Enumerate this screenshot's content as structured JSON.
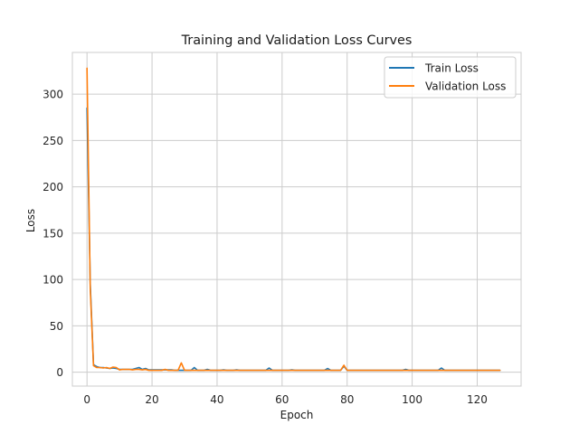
{
  "chart_data": {
    "type": "line",
    "title": "Training and Validation Loss Curves",
    "xlabel": "Epoch",
    "ylabel": "Loss",
    "xlim": [
      -4.5,
      133.5
    ],
    "ylim": [
      -15,
      345
    ],
    "xticks": [
      0,
      20,
      40,
      60,
      80,
      100,
      120
    ],
    "yticks": [
      0,
      50,
      100,
      150,
      200,
      250,
      300
    ],
    "grid": true,
    "legend_position": "top-right",
    "series": [
      {
        "name": "Train Loss",
        "color": "#1f77b4",
        "x": [
          0,
          1,
          2,
          3,
          4,
          5,
          6,
          7,
          8,
          9,
          10,
          11,
          12,
          13,
          14,
          15,
          16,
          17,
          18,
          19,
          20,
          21,
          22,
          23,
          24,
          25,
          26,
          27,
          28,
          29,
          30,
          31,
          32,
          33,
          34,
          35,
          36,
          37,
          38,
          39,
          40,
          41,
          42,
          43,
          44,
          45,
          46,
          47,
          48,
          49,
          50,
          51,
          52,
          53,
          54,
          55,
          56,
          57,
          58,
          59,
          60,
          61,
          62,
          63,
          64,
          65,
          66,
          67,
          68,
          69,
          70,
          71,
          72,
          73,
          74,
          75,
          76,
          77,
          78,
          79,
          80,
          81,
          82,
          83,
          84,
          85,
          86,
          87,
          88,
          89,
          90,
          91,
          92,
          93,
          94,
          95,
          96,
          97,
          98,
          99,
          100,
          101,
          102,
          103,
          104,
          105,
          106,
          107,
          108,
          109,
          110,
          111,
          112,
          113,
          114,
          115,
          116,
          117,
          118,
          119,
          120,
          121,
          122,
          123,
          124,
          125,
          126,
          127
        ],
        "y": [
          285,
          95,
          8,
          6,
          5,
          5,
          4.5,
          4,
          4.5,
          4,
          3,
          3,
          3,
          3,
          3,
          4,
          5,
          3,
          4,
          2.5,
          2.5,
          2.5,
          2.5,
          2.5,
          2.5,
          2.5,
          2.5,
          2,
          2,
          2,
          2,
          2,
          2,
          5,
          2,
          2,
          2,
          3,
          2,
          2,
          2,
          2,
          2.5,
          2,
          2,
          2,
          2.5,
          2,
          2,
          2,
          2,
          2,
          2,
          2,
          2,
          2,
          4.5,
          2,
          2,
          2,
          2,
          2,
          2,
          2.5,
          2,
          2,
          2,
          2,
          2,
          2,
          2,
          2,
          2,
          2,
          4,
          2,
          2,
          2,
          2,
          6.5,
          2,
          2,
          2,
          2,
          2,
          2,
          2,
          2,
          2,
          2,
          2,
          2,
          2,
          2,
          2,
          2,
          2,
          2,
          3,
          2,
          2,
          2,
          2,
          2,
          2,
          2,
          2,
          2,
          2,
          4.5,
          2,
          2,
          2,
          2,
          2,
          2,
          2,
          2,
          2,
          2,
          2,
          2,
          2,
          2,
          2,
          2,
          2,
          2
        ]
      },
      {
        "name": "Validation Loss",
        "color": "#ff7f0e",
        "x": [
          0,
          1,
          2,
          3,
          4,
          5,
          6,
          7,
          8,
          9,
          10,
          11,
          12,
          13,
          14,
          15,
          16,
          17,
          18,
          19,
          20,
          21,
          22,
          23,
          24,
          25,
          26,
          27,
          28,
          29,
          30,
          31,
          32,
          33,
          34,
          35,
          36,
          37,
          38,
          39,
          40,
          41,
          42,
          43,
          44,
          45,
          46,
          47,
          48,
          49,
          50,
          51,
          52,
          53,
          54,
          55,
          56,
          57,
          58,
          59,
          60,
          61,
          62,
          63,
          64,
          65,
          66,
          67,
          68,
          69,
          70,
          71,
          72,
          73,
          74,
          75,
          76,
          77,
          78,
          79,
          80,
          81,
          82,
          83,
          84,
          85,
          86,
          87,
          88,
          89,
          90,
          91,
          92,
          93,
          94,
          95,
          96,
          97,
          98,
          99,
          100,
          101,
          102,
          103,
          104,
          105,
          106,
          107,
          108,
          109,
          110,
          111,
          112,
          113,
          114,
          115,
          116,
          117,
          118,
          119,
          120,
          121,
          122,
          123,
          124,
          125,
          126,
          127
        ],
        "y": [
          328,
          90,
          7,
          5,
          5,
          4.5,
          5,
          4,
          5.5,
          5,
          2.5,
          3,
          3,
          3,
          2.5,
          3,
          3,
          2.5,
          3,
          2,
          2,
          2,
          2,
          2,
          3,
          2,
          2,
          2,
          2,
          10,
          2,
          2,
          2,
          2,
          2,
          2,
          2,
          2,
          2,
          2,
          2,
          2,
          2,
          2,
          2,
          2,
          2,
          2,
          2,
          2,
          2,
          2,
          2,
          2,
          2,
          2,
          2,
          2,
          2,
          2,
          2,
          2,
          2,
          2,
          2,
          2,
          2,
          2,
          2,
          2,
          2,
          2,
          2,
          2,
          2,
          2,
          2,
          2,
          2,
          7.5,
          2,
          2,
          2,
          2,
          2,
          2,
          2,
          2,
          2,
          2,
          2,
          2,
          2,
          2,
          2,
          2,
          2,
          2,
          2,
          2,
          2,
          2,
          2,
          2,
          2,
          2,
          2,
          2,
          2,
          2,
          2,
          2,
          2,
          2,
          2,
          2,
          2,
          2,
          2,
          2,
          2,
          2,
          2,
          2,
          2,
          2,
          2,
          2
        ]
      }
    ]
  }
}
